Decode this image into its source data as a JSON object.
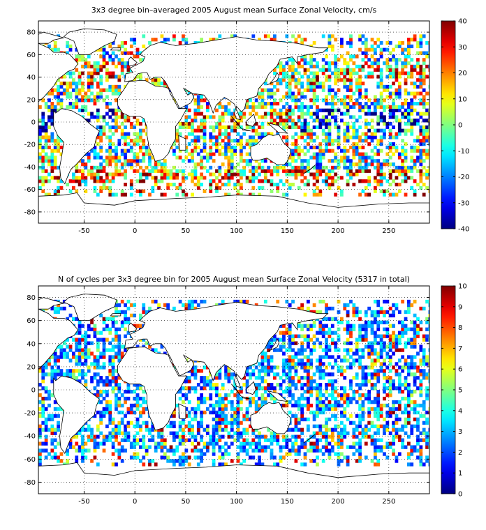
{
  "figure": {
    "panels": [
      {
        "title": "3x3 degree bin–averaged 2005 August mean Surface Zonal Velocity, cm/s",
        "colorbar": {
          "min": -40,
          "max": 40,
          "ticks": [
            "40",
            "30",
            "20",
            "10",
            "0",
            "-10",
            "-20",
            "-30",
            "-40"
          ]
        }
      },
      {
        "title": "N of cycles per 3x3 degree bin for 2005 August mean Surface Zonal Velocity (5317 in total)",
        "colorbar": {
          "min": 0,
          "max": 10,
          "ticks": [
            "10",
            "9",
            "8",
            "7",
            "6",
            "5",
            "4",
            "3",
            "2",
            "1",
            "0"
          ]
        }
      }
    ],
    "x_axis": {
      "range": [
        -95,
        290
      ],
      "ticks": [
        "-50",
        "0",
        "50",
        "100",
        "150",
        "200",
        "250"
      ]
    },
    "y_axis": {
      "range": [
        -90,
        90
      ],
      "ticks": [
        "80",
        "60",
        "40",
        "20",
        "0",
        "-20",
        "-40",
        "-60",
        "-80"
      ]
    },
    "grid": "dotted"
  }
}
